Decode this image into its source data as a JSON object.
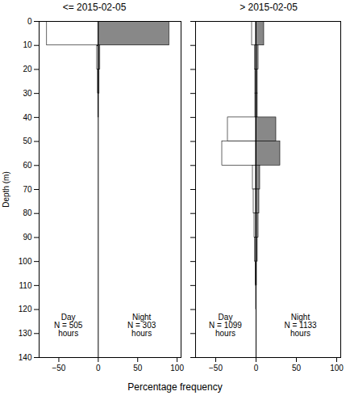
{
  "chart_data": [
    {
      "type": "bar",
      "orientation": "horizontal",
      "title": "<= 2015-02-05",
      "xlabel": "Percentage frequency",
      "ylabel": "Depth (m)",
      "bins": [
        0,
        10,
        20,
        30,
        40,
        50,
        60,
        70,
        80,
        90,
        100,
        110,
        120,
        130,
        140
      ],
      "series": [
        {
          "color": "white",
          "values": [
            -65,
            -1.5,
            -0.5,
            0,
            0,
            0,
            0,
            0,
            0,
            0,
            0,
            0,
            0,
            0
          ]
        },
        {
          "color": "#888888",
          "values": [
            90,
            2.5,
            1.5,
            0.5,
            0,
            0,
            0,
            0,
            0,
            0,
            0,
            0,
            0,
            0
          ]
        }
      ],
      "xlim": [
        -75,
        105
      ],
      "xticks": [
        -50,
        0,
        50,
        100
      ],
      "ylim": [
        140,
        0
      ],
      "yticks": [
        0,
        10,
        20,
        30,
        40,
        50,
        60,
        70,
        80,
        90,
        100,
        110,
        120,
        130,
        140
      ],
      "annotations": [
        {
          "text": "Day\nN = 505\nhours",
          "x": -38,
          "y": 122
        },
        {
          "text": "Night\nN = 303\nhours",
          "x": 55,
          "y": 122
        }
      ],
      "grid": false
    },
    {
      "type": "bar",
      "orientation": "horizontal",
      "title": "> 2015-02-05",
      "bins": [
        0,
        10,
        20,
        30,
        40,
        50,
        60,
        70,
        80,
        90,
        100,
        110,
        120,
        130,
        140
      ],
      "series": [
        {
          "color": "white",
          "values": [
            -5,
            -1.5,
            -1,
            -1,
            -35,
            -42,
            -4,
            -3,
            -2,
            -1.5,
            -0.5,
            0,
            0,
            0
          ]
        },
        {
          "color": "#888888",
          "values": [
            10,
            3,
            2,
            2,
            25,
            30,
            5,
            4,
            3,
            2,
            1,
            0.5,
            0,
            0
          ]
        }
      ],
      "xlim": [
        -75,
        105
      ],
      "xticks": [
        -50,
        0,
        50,
        100
      ],
      "ylim": [
        140,
        0
      ],
      "yticks": [
        0,
        10,
        20,
        30,
        40,
        50,
        60,
        70,
        80,
        90,
        100,
        110,
        120,
        130,
        140
      ],
      "annotations": [
        {
          "text": "Day\nN = 1099\nhours",
          "x": -38,
          "y": 122
        },
        {
          "text": "Night\nN = 1133\nhours",
          "x": 55,
          "y": 122
        }
      ],
      "grid": false,
      "tick_labels": "x"
    }
  ]
}
